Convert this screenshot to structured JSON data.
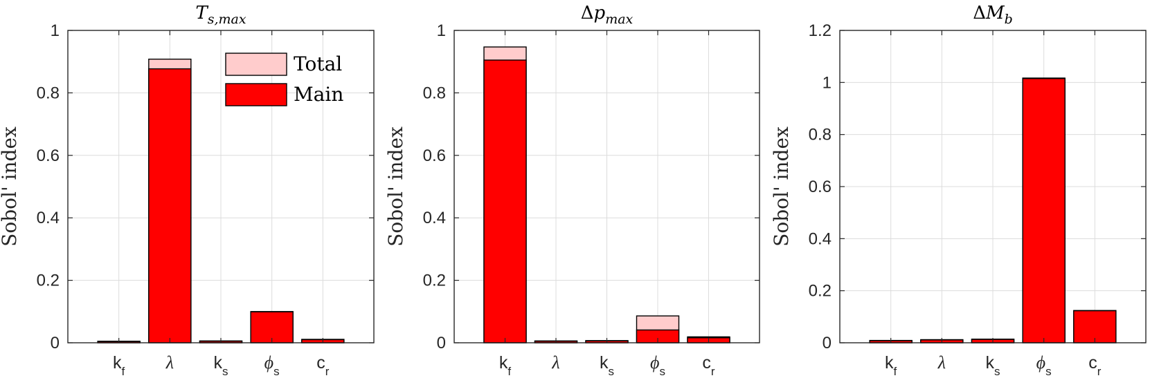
{
  "colors": {
    "main": "#ff0000",
    "total": "#ffcccc",
    "edge": "#000000",
    "grid": "#dcdcdc",
    "axis": "#262626"
  },
  "chart_data": [
    {
      "type": "bar",
      "title": "T_{s,max}",
      "ylabel": "Sobol' index",
      "ylim": [
        0,
        1
      ],
      "yticks": [
        "0",
        "0.2",
        "0.4",
        "0.6",
        "0.8",
        "1"
      ],
      "categories": [
        "k_f",
        "λ",
        "k_s",
        "ϕ_s",
        "c_r"
      ],
      "series": [
        {
          "name": "Total",
          "values": [
            0.005,
            0.908,
            0.006,
            0.1,
            0.011
          ]
        },
        {
          "name": "Main",
          "values": [
            0.004,
            0.877,
            0.005,
            0.099,
            0.01
          ]
        }
      ],
      "legend": {
        "position": "top-right",
        "entries": [
          "Total",
          "Main"
        ]
      },
      "grid": true
    },
    {
      "type": "bar",
      "title": "Δp_{max}",
      "ylabel": "Sobol' index",
      "ylim": [
        0,
        1
      ],
      "yticks": [
        "0",
        "0.2",
        "0.4",
        "0.6",
        "0.8",
        "1"
      ],
      "categories": [
        "k_f",
        "λ",
        "k_s",
        "ϕ_s",
        "c_r"
      ],
      "series": [
        {
          "name": "Total",
          "values": [
            0.947,
            0.006,
            0.007,
            0.086,
            0.019
          ]
        },
        {
          "name": "Main",
          "values": [
            0.905,
            0.005,
            0.006,
            0.041,
            0.016
          ]
        }
      ],
      "grid": true
    },
    {
      "type": "bar",
      "title": "ΔM_b",
      "ylabel": "Sobol' index",
      "ylim": [
        0,
        1.2
      ],
      "yticks": [
        "0",
        "0.2",
        "0.4",
        "0.6",
        "0.8",
        "1",
        "1.2"
      ],
      "categories": [
        "k_f",
        "λ",
        "k_s",
        "ϕ_s",
        "c_r"
      ],
      "series": [
        {
          "name": "Total",
          "values": [
            0.009,
            0.012,
            0.014,
            1.017,
            0.124
          ]
        },
        {
          "name": "Main",
          "values": [
            0.008,
            0.011,
            0.013,
            1.015,
            0.123
          ]
        }
      ],
      "grid": true
    }
  ]
}
